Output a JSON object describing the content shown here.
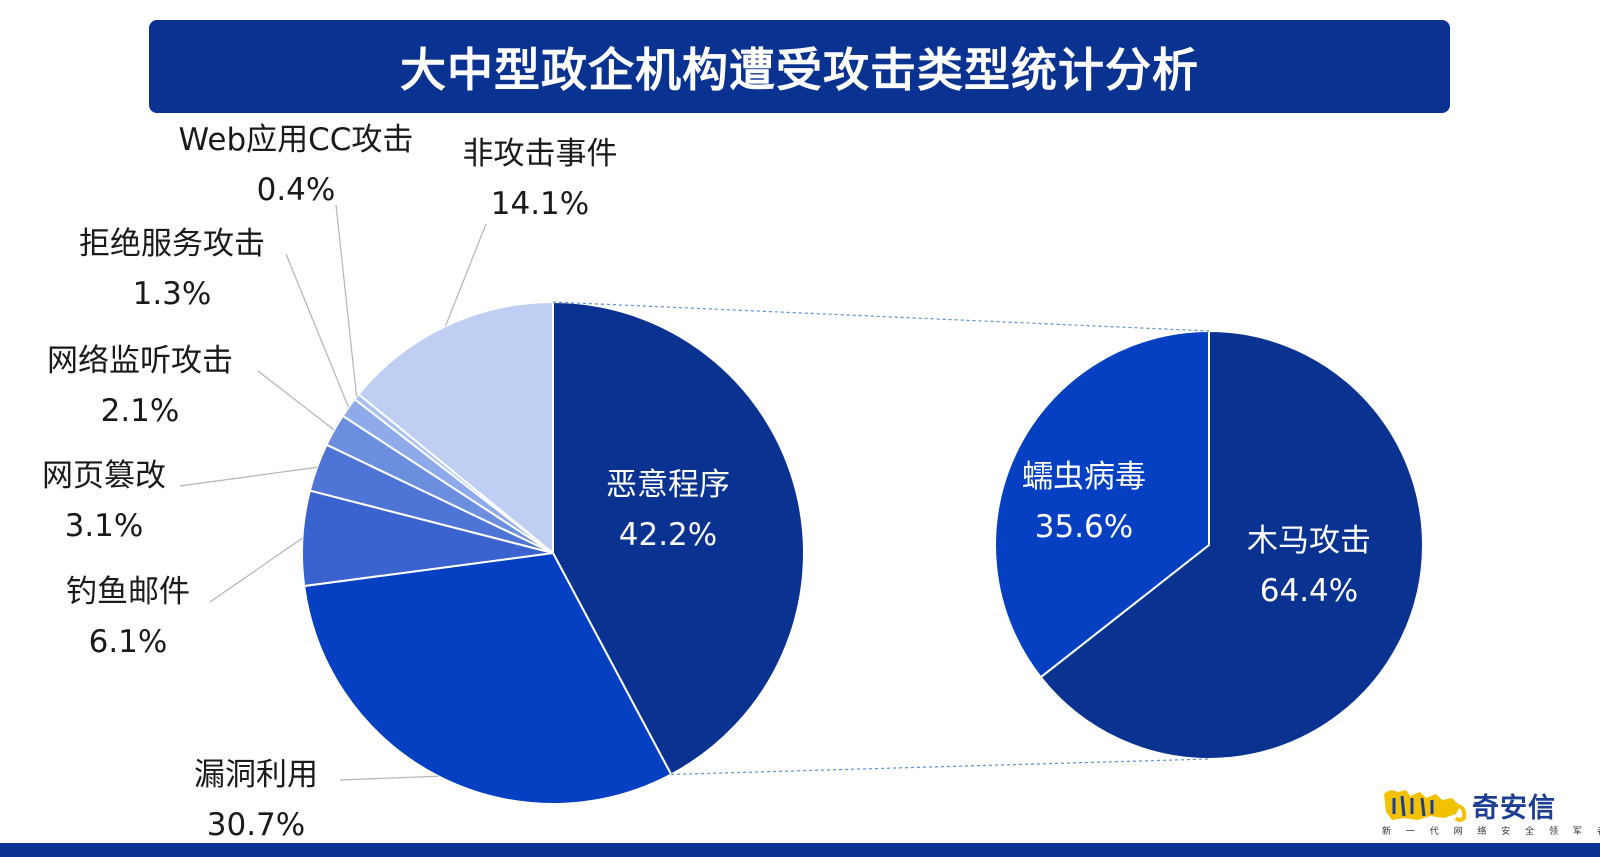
{
  "title": "大中型政企机构遭受攻击类型统计分析",
  "logo": {
    "name": "奇安信",
    "tagline": "新 一 代 网 络 安 全 领 军 者",
    "mark_text": "猫"
  },
  "colors": {
    "title_bg": "#0a3291",
    "main_palette": [
      "#0a3291",
      "#0540c2",
      "#3b63cf",
      "#4e74d6",
      "#6b8edf",
      "#8eaaea",
      "#a9c0f0",
      "#bfcff4"
    ],
    "sub_palette": [
      "#0a3291",
      "#0540c2"
    ],
    "logo_yellow": "#f2c200"
  },
  "chart_data": [
    {
      "type": "pie",
      "title": "",
      "slices": [
        {
          "label": "恶意程序",
          "value": 42.2,
          "value_label": "42.2%"
        },
        {
          "label": "漏洞利用",
          "value": 30.7,
          "value_label": "30.7%"
        },
        {
          "label": "钓鱼邮件",
          "value": 6.1,
          "value_label": "6.1%"
        },
        {
          "label": "网页篡改",
          "value": 3.1,
          "value_label": "3.1%"
        },
        {
          "label": "网络监听攻击",
          "value": 2.1,
          "value_label": "2.1%"
        },
        {
          "label": "拒绝服务攻击",
          "value": 1.3,
          "value_label": "1.3%"
        },
        {
          "label": "Web应用CC攻击",
          "value": 0.4,
          "value_label": "0.4%"
        },
        {
          "label": "非攻击事件",
          "value": 14.1,
          "value_label": "14.1%"
        }
      ]
    },
    {
      "type": "pie",
      "title": "",
      "breakdown_of": "恶意程序",
      "slices": [
        {
          "label": "木马攻击",
          "value": 64.4,
          "value_label": "64.4%"
        },
        {
          "label": "蠕虫病毒",
          "value": 35.6,
          "value_label": "35.6%"
        }
      ]
    }
  ]
}
